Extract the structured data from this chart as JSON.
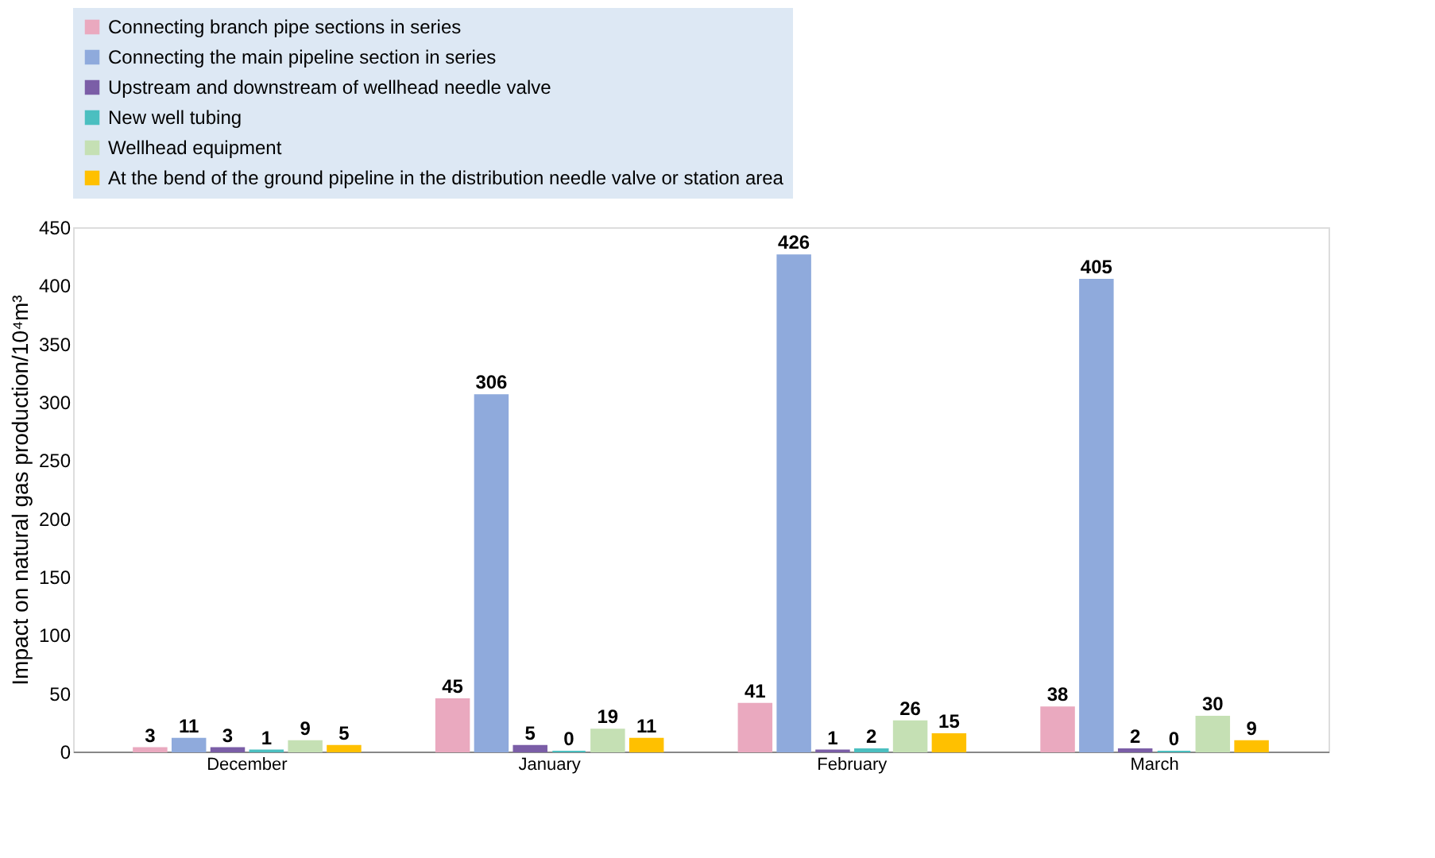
{
  "chart_data": {
    "type": "bar",
    "ylabel": "Impact on natural gas production/10⁴m³",
    "categories": [
      "December",
      "January",
      "February",
      "March"
    ],
    "series": [
      {
        "name": "Connecting branch pipe sections in series",
        "color": "#eaa9bf",
        "values": [
          3,
          45,
          41,
          38
        ]
      },
      {
        "name": "Connecting the main pipeline section in series",
        "color": "#8faadc",
        "values": [
          11,
          306,
          426,
          405
        ]
      },
      {
        "name": "Upstream and downstream of wellhead needle valve",
        "color": "#7b5ea7",
        "values": [
          3,
          5,
          1,
          2
        ]
      },
      {
        "name": "New well tubing",
        "color": "#4bbfc0",
        "values": [
          1,
          0,
          2,
          0
        ]
      },
      {
        "name": "Wellhead equipment",
        "color": "#c5e0b4",
        "values": [
          9,
          19,
          26,
          30
        ]
      },
      {
        "name": "At the bend of the ground pipeline in the distribution needle valve or station area",
        "color": "#ffc000",
        "values": [
          5,
          11,
          15,
          9
        ]
      }
    ],
    "ylim": [
      0,
      450
    ],
    "yticks": [
      0,
      50,
      100,
      150,
      200,
      250,
      300,
      350,
      400,
      450
    ],
    "grid": false,
    "legend": "top left",
    "data_labels": true
  }
}
